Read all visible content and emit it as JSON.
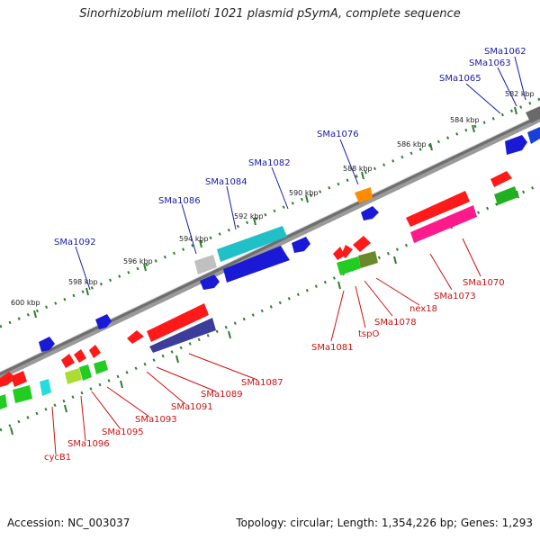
{
  "title": "Sinorhizobium meliloti 1021 plasmid pSymA, complete sequence",
  "footer": {
    "accession": "Accession: NC_003037",
    "summary": "Topology: circular; Length: 1,354,226 bp; Genes: 1,293"
  },
  "colors": {
    "backbone": "#777777",
    "tick": "#2e7d2e",
    "forward_label": "#1a1aa6",
    "reverse_label": "#cc1111"
  },
  "scale_labels": [
    "582 kbp",
    "584 kbp",
    "586 kbp",
    "588 kbp",
    "590 kbp",
    "592 kbp",
    "594 kbp",
    "596 kbp",
    "598 kbp",
    "600 kbp"
  ],
  "forward_genes": [
    "SMa1062",
    "SMa1063",
    "SMa1065",
    "SMa1076",
    "SMa1082",
    "SMa1084",
    "SMa1086",
    "SMa1092"
  ],
  "reverse_genes": [
    "SMa1070",
    "SMa1073",
    "nex18",
    "SMa1078",
    "tspO",
    "SMa1081",
    "SMa1087",
    "SMa1089",
    "SMa1091",
    "SMa1093",
    "SMa1095",
    "SMa1096",
    "cycB1"
  ]
}
